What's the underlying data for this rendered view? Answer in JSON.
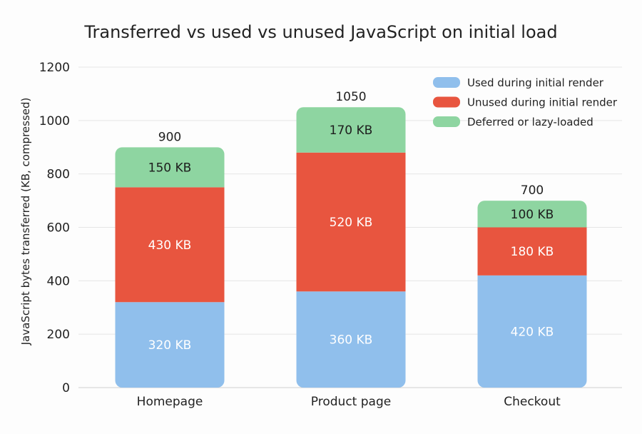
{
  "chart_data": {
    "type": "bar",
    "stacked": true,
    "title": "Transferred vs used vs unused JavaScript on initial load",
    "xlabel": "",
    "ylabel": "JavaScript bytes transferred (KB, compressed)",
    "ylim": [
      0,
      1200
    ],
    "yticks": [
      0,
      200,
      400,
      600,
      800,
      1000,
      1200
    ],
    "grid": true,
    "legend_position": "top-right",
    "categories": [
      "Homepage",
      "Product page",
      "Checkout"
    ],
    "series": [
      {
        "name": "Used during initial render",
        "color": "#90bfec",
        "values": [
          320,
          360,
          420
        ],
        "labels": [
          "320 KB",
          "360 KB",
          "420 KB"
        ]
      },
      {
        "name": "Unused during initial render",
        "color": "#e8553f",
        "values": [
          430,
          520,
          180
        ],
        "labels": [
          "430 KB",
          "520 KB",
          "180 KB"
        ]
      },
      {
        "name": "Deferred or lazy-loaded",
        "color": "#8ed5a1",
        "values": [
          150,
          170,
          100
        ],
        "labels": [
          "150 KB",
          "170 KB",
          "100 KB"
        ]
      }
    ],
    "totals": [
      900,
      1050,
      700
    ]
  }
}
